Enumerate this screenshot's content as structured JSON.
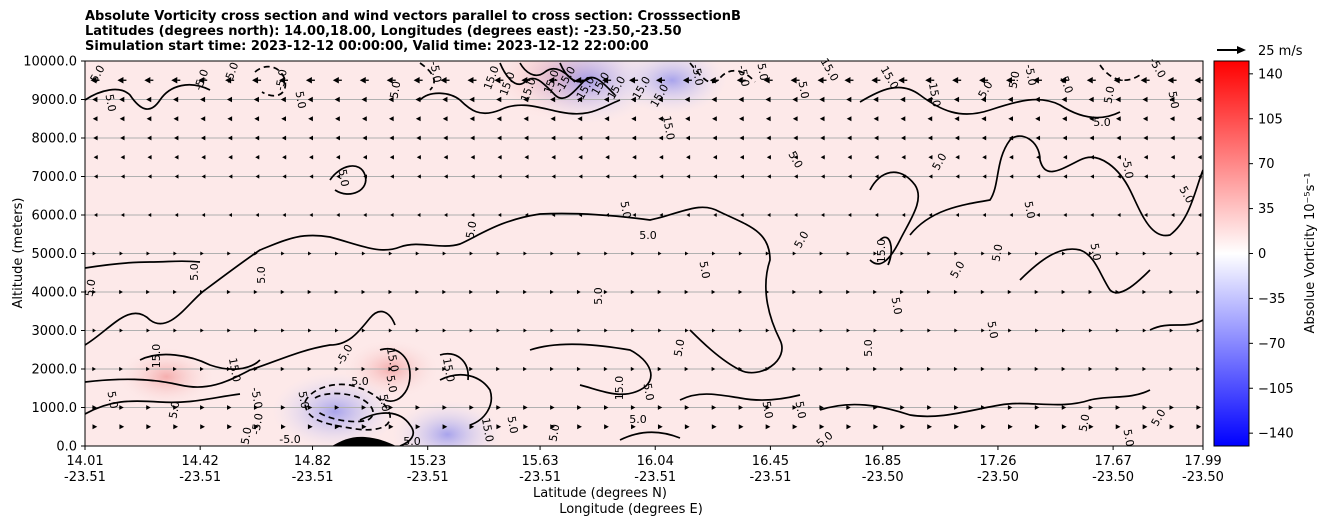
{
  "chart_data": {
    "type": "heatmap",
    "title_lines": [
      "Absolute Vorticity cross section and wind vectors parallel to cross section: CrosssectionB",
      "Latitudes (degrees north): 14.00,18.00, Longitudes (degrees east): -23.50,-23.50",
      "Simulation start time: 2023-12-12 00:00:00, Valid time: 2023-12-12 22:00:00"
    ],
    "ylabel": "Altitude (meters)",
    "xlabel_line1": "Latitude (degrees N)",
    "xlabel_line2": "Longitude (degrees E)",
    "ylim": [
      0,
      10000
    ],
    "y_ticks": [
      "0.0",
      "1000.0",
      "2000.0",
      "3000.0",
      "4000.0",
      "5000.0",
      "6000.0",
      "7000.0",
      "8000.0",
      "9000.0",
      "10000.0"
    ],
    "x_ticks": [
      {
        "lat": "14.01",
        "lon": "-23.51"
      },
      {
        "lat": "14.42",
        "lon": "-23.51"
      },
      {
        "lat": "14.82",
        "lon": "-23.51"
      },
      {
        "lat": "15.23",
        "lon": "-23.51"
      },
      {
        "lat": "15.63",
        "lon": "-23.51"
      },
      {
        "lat": "16.04",
        "lon": "-23.51"
      },
      {
        "lat": "16.45",
        "lon": "-23.51"
      },
      {
        "lat": "16.85",
        "lon": "-23.50"
      },
      {
        "lat": "17.26",
        "lon": "-23.50"
      },
      {
        "lat": "17.67",
        "lon": "-23.50"
      },
      {
        "lat": "17.99",
        "lon": "-23.50"
      }
    ],
    "grid": "horizontal",
    "colorbar": {
      "label": "Absolue Vorticity 10⁻⁵s⁻¹",
      "range": [
        -150,
        150
      ],
      "ticks": [
        "140",
        "105",
        "70",
        "35",
        "0",
        "−35",
        "−70",
        "−105",
        "−140"
      ],
      "tick_values": [
        140,
        105,
        70,
        35,
        0,
        -35,
        -70,
        -105,
        -140
      ],
      "colors": {
        "min": "#0000ff",
        "mid": "#ffffff",
        "max": "#ff0000"
      }
    },
    "quiver_key": "25 m/s",
    "contour_labels": [
      "5.0",
      "-5.0",
      "15.0",
      "-15.0"
    ],
    "background_value": 5,
    "vorticity_features": [
      {
        "lat": 14.9,
        "alt": 900,
        "value": -25
      },
      {
        "lat": 15.3,
        "alt": 300,
        "value": -20
      },
      {
        "lat": 15.7,
        "alt": 9600,
        "value": 30
      },
      {
        "lat": 15.8,
        "alt": 9500,
        "value": -30
      },
      {
        "lat": 16.1,
        "alt": 9500,
        "value": -20
      },
      {
        "lat": 15.1,
        "alt": 2000,
        "value": 15
      },
      {
        "lat": 14.3,
        "alt": 1800,
        "value": 15
      }
    ],
    "wind_vectors": [
      {
        "alt": 9500,
        "u": -10
      },
      {
        "alt": 9000,
        "u": -6
      },
      {
        "alt": 8500,
        "u": -5
      },
      {
        "alt": 8000,
        "u": -4
      },
      {
        "alt": 7500,
        "u": -3
      },
      {
        "alt": 7000,
        "u": -2
      },
      {
        "alt": 6000,
        "u": -1
      },
      {
        "alt": 5000,
        "u": 1
      },
      {
        "alt": 4000,
        "u": 2
      },
      {
        "alt": 3000,
        "u": 1
      },
      {
        "alt": 2000,
        "u": 2
      },
      {
        "alt": 1000,
        "u": 4
      },
      {
        "alt": 500,
        "u": 5
      }
    ]
  }
}
